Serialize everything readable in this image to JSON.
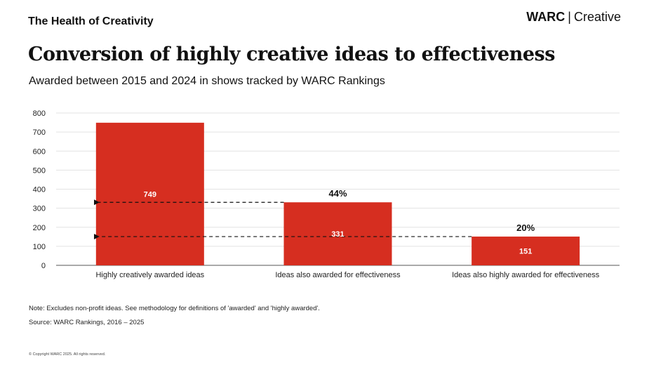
{
  "header": {
    "series_title": "The Health of Creativity",
    "brand_primary": "WARC",
    "brand_separator": "|",
    "brand_secondary": "Creative"
  },
  "title": "Conversion of highly creative ideas to effectiveness",
  "subtitle": "Awarded between 2015 and 2024 in shows tracked by WARC Rankings",
  "chart_data": {
    "type": "bar",
    "categories": [
      "Highly creatively awarded ideas",
      "Ideas also awarded for effectiveness",
      "Ideas also highly awarded for effectiveness"
    ],
    "values": [
      749,
      331,
      151
    ],
    "value_labels": [
      "749",
      "331",
      "151"
    ],
    "conversion_labels": [
      "",
      "44%",
      "20%"
    ],
    "ylim": [
      0,
      800
    ],
    "yticks": [
      0,
      100,
      200,
      300,
      400,
      500,
      600,
      700,
      800
    ],
    "grid": true,
    "bar_color": "#d62e20",
    "reference_lines": [
      {
        "value": 331,
        "style": "dashed-arrow"
      },
      {
        "value": 151,
        "style": "dashed-arrow"
      }
    ]
  },
  "footer": {
    "note": "Note: Excludes non-profit ideas. See methodology for definitions of 'awarded' and 'highly awarded'.",
    "source": "Source: WARC Rankings, 2016 – 2025",
    "copyright": "© Copyright WARC 2025. All rights reserved."
  }
}
